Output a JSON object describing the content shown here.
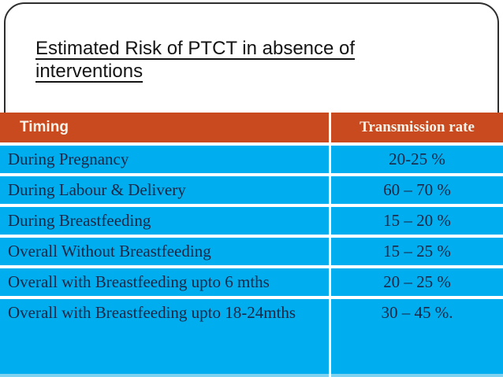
{
  "slide": {
    "title_line1": "Estimated Risk of PTCT in absence of",
    "title_line2": "interventions"
  },
  "table": {
    "header": {
      "timing": "Timing",
      "rate": "Transmission rate"
    },
    "rows": [
      {
        "timing": "During Pregnancy",
        "rate": "20-25 %"
      },
      {
        "timing": "During Labour & Delivery",
        "rate": "60 – 70 %"
      },
      {
        "timing": "During Breastfeeding",
        "rate": "15 – 20 %"
      },
      {
        "timing": "Overall Without Breastfeeding",
        "rate": "15 – 25 %"
      },
      {
        "timing": "Overall with Breastfeeding upto 6 mths",
        "rate": "20 – 25 %"
      },
      {
        "timing": "Overall with Breastfeeding upto 18-24mths",
        "rate": "30 – 45 %."
      }
    ]
  },
  "colors": {
    "header_bg": "#C84A1E",
    "header_text": "#F7F3EA",
    "row_bg": "#00ADEE",
    "row_text": "#1C2745",
    "bottom_strip": "#7FD2F0",
    "box_border": "#2e2e2e"
  }
}
